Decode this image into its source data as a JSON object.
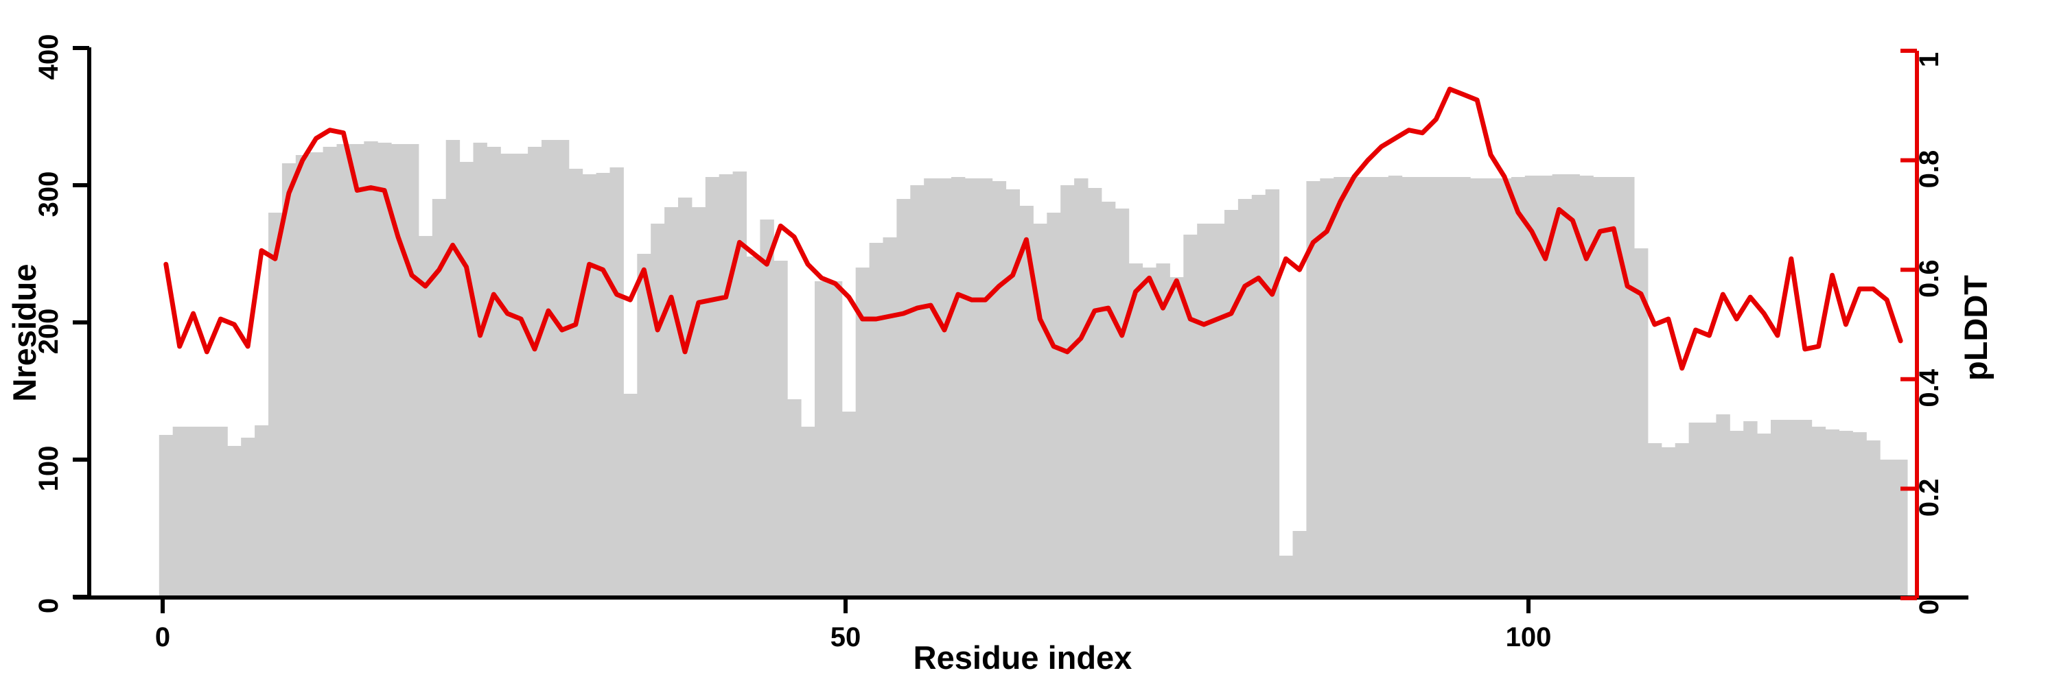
{
  "chart_data": {
    "type": "bar",
    "subtype": "bar-with-overlaid-line-dual-axis",
    "title": "",
    "xlabel": "Residue index",
    "ylabel_left": "Nresidue",
    "ylabel_right": "pLDDT",
    "x_tick_labels": [
      "0",
      "50",
      "100"
    ],
    "x_tick_values": [
      0,
      50,
      100
    ],
    "y_left_tick_labels": [
      "0",
      "100",
      "200",
      "300",
      "400"
    ],
    "y_left_tick_values": [
      0,
      100,
      200,
      300,
      400
    ],
    "y_right_tick_labels": [
      "0",
      "0.2",
      "0.4",
      "0.6",
      "0.8",
      "1"
    ],
    "y_right_tick_values": [
      0,
      0.2,
      0.4,
      0.6,
      0.8,
      1
    ],
    "xlim": [
      -6.5,
      132
    ],
    "ylim_left": [
      0,
      400
    ],
    "ylim_right": [
      0,
      1
    ],
    "grid": false,
    "legend": "none",
    "colors": {
      "bar": "#cfcfcf",
      "line": "#e60000",
      "axis_left": "#000000",
      "axis_right": "#e60000"
    },
    "x_start_residue": 0,
    "n_residues": 128,
    "series": [
      {
        "name": "Nresidue",
        "type": "bar",
        "axis": "left",
        "values": [
          118,
          124,
          124,
          124,
          124,
          110,
          116,
          125,
          280,
          316,
          322,
          324,
          328,
          330,
          330,
          332,
          331,
          330,
          330,
          263,
          290,
          333,
          317,
          331,
          328,
          323,
          323,
          328,
          333,
          333,
          312,
          308,
          309,
          313,
          148,
          250,
          272,
          284,
          291,
          284,
          306,
          308,
          310,
          248,
          275,
          245,
          144,
          124,
          230,
          230,
          135,
          240,
          258,
          262,
          290,
          300,
          305,
          305,
          306,
          305,
          305,
          303,
          297,
          285,
          272,
          280,
          300,
          305,
          298,
          288,
          283,
          243,
          240,
          243,
          233,
          264,
          272,
          272,
          282,
          290,
          293,
          297,
          30,
          48,
          303,
          305,
          306,
          306,
          306,
          306,
          307,
          306,
          306,
          306,
          306,
          306,
          305,
          305,
          305,
          306,
          307,
          307,
          308,
          308,
          307,
          306,
          306,
          306,
          254,
          112,
          109,
          112,
          127,
          127,
          133,
          121,
          128,
          119,
          129,
          129,
          129,
          124,
          122,
          121,
          120,
          114,
          100,
          100
        ]
      },
      {
        "name": "pLDDT",
        "type": "line",
        "axis": "right",
        "values": [
          0.61,
          0.46,
          0.52,
          0.45,
          0.51,
          0.5,
          0.46,
          0.635,
          0.62,
          0.74,
          0.8,
          0.84,
          0.855,
          0.85,
          0.745,
          0.75,
          0.745,
          0.66,
          0.59,
          0.57,
          0.6,
          0.645,
          0.605,
          0.48,
          0.555,
          0.52,
          0.51,
          0.455,
          0.525,
          0.49,
          0.5,
          0.61,
          0.6,
          0.555,
          0.545,
          0.6,
          0.49,
          0.55,
          0.45,
          0.54,
          0.545,
          0.55,
          0.65,
          0.63,
          0.61,
          0.68,
          0.66,
          0.61,
          0.585,
          0.575,
          0.55,
          0.51,
          0.51,
          0.515,
          0.52,
          0.53,
          0.535,
          0.49,
          0.555,
          0.545,
          0.545,
          0.57,
          0.59,
          0.655,
          0.51,
          0.46,
          0.45,
          0.475,
          0.525,
          0.53,
          0.48,
          0.56,
          0.585,
          0.53,
          0.58,
          0.51,
          0.5,
          0.51,
          0.52,
          0.57,
          0.585,
          0.555,
          0.62,
          0.6,
          0.65,
          0.67,
          0.725,
          0.77,
          0.8,
          0.825,
          0.84,
          0.855,
          0.85,
          0.875,
          0.93,
          0.92,
          0.91,
          0.81,
          0.77,
          0.705,
          0.67,
          0.62,
          0.71,
          0.69,
          0.62,
          0.67,
          0.675,
          0.57,
          0.556,
          0.5,
          0.51,
          0.42,
          0.49,
          0.48,
          0.555,
          0.51,
          0.55,
          0.52,
          0.48,
          0.62,
          0.455,
          0.46,
          0.59,
          0.5,
          0.565,
          0.565,
          0.545,
          0.47
        ]
      }
    ]
  }
}
